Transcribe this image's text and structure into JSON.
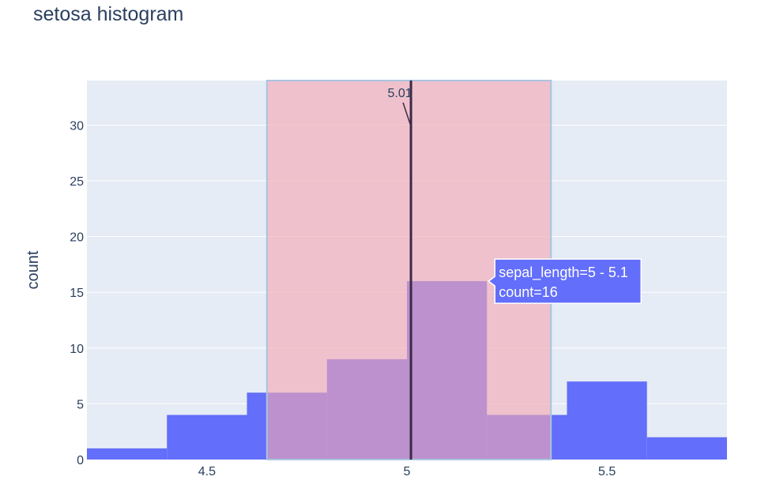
{
  "chart_data": {
    "type": "bar",
    "title": "setosa histogram",
    "xlabel": "",
    "ylabel": "count",
    "xlim": [
      4.2,
      5.8
    ],
    "ylim": [
      0,
      34
    ],
    "x_ticks": [
      4.5,
      5,
      5.5
    ],
    "x_tick_labels": [
      "4.5",
      "5",
      "5.5"
    ],
    "y_ticks": [
      0,
      5,
      10,
      15,
      20,
      25,
      30
    ],
    "y_tick_labels": [
      "0",
      "5",
      "10",
      "15",
      "20",
      "25",
      "30"
    ],
    "grid": true,
    "series": [
      {
        "name": "sepal_length",
        "bins": [
          {
            "x0": 4.2,
            "x1": 4.4,
            "count": 1
          },
          {
            "x0": 4.4,
            "x1": 4.6,
            "count": 4
          },
          {
            "x0": 4.6,
            "x1": 4.8,
            "count": 6
          },
          {
            "x0": 4.8,
            "x1": 5.0,
            "count": 9
          },
          {
            "x0": 5.0,
            "x1": 5.2,
            "count": 16
          },
          {
            "x0": 5.2,
            "x1": 5.4,
            "count": 4
          },
          {
            "x0": 5.4,
            "x1": 5.6,
            "count": 7
          },
          {
            "x0": 5.6,
            "x1": 5.8,
            "count": 2
          }
        ]
      }
    ],
    "shaded_region": {
      "x0": 4.65,
      "x1": 5.36
    },
    "mean_line": {
      "x": 5.01,
      "label": "5.01"
    },
    "tooltip": {
      "bin_index": 4,
      "line1": "sepal_length=5 - 5.1",
      "line2": "count=16"
    }
  },
  "colors": {
    "background": "#ffffff",
    "plot_bg": "#e5ecf6",
    "grid": "#ffffff",
    "bar": "#636efa",
    "shade_fill": "#f4a6b2",
    "shade_border": "#a9c4e0",
    "mean_line": "#3b2a47",
    "title_text": "#2a3f5f",
    "tick_text": "#2a3f5f",
    "tooltip_bg": "#636efa",
    "tooltip_border": "#ffffff",
    "tooltip_text": "#ffffff"
  }
}
